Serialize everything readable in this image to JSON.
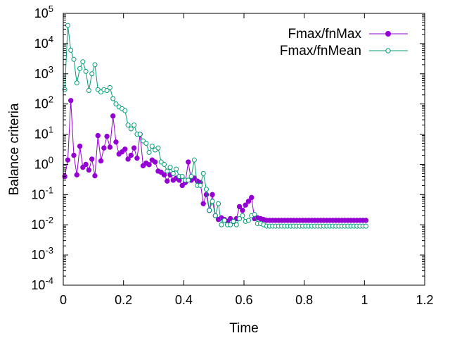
{
  "chart_data": {
    "type": "line",
    "xlabel": "Time",
    "ylabel": "Balance criteria",
    "x_scale": "linear",
    "y_scale": "log",
    "xlim": [
      0,
      1.2
    ],
    "ylim": [
      0.0001,
      100000
    ],
    "x_ticks": [
      "0",
      "0.2",
      "0.4",
      "0.6",
      "0.8",
      "1",
      "1.2"
    ],
    "x_tick_values": [
      0,
      0.2,
      0.4,
      0.6,
      0.8,
      1.0,
      1.2
    ],
    "y_ticks": [
      {
        "base": "10",
        "exp": "-4",
        "value": 0.0001
      },
      {
        "base": "10",
        "exp": "-3",
        "value": 0.001
      },
      {
        "base": "10",
        "exp": "-2",
        "value": 0.01
      },
      {
        "base": "10",
        "exp": "-1",
        "value": 0.1
      },
      {
        "base": "10",
        "exp": "0",
        "value": 1
      },
      {
        "base": "10",
        "exp": "1",
        "value": 10
      },
      {
        "base": "10",
        "exp": "2",
        "value": 100
      },
      {
        "base": "10",
        "exp": "3",
        "value": 1000
      },
      {
        "base": "10",
        "exp": "4",
        "value": 10000
      },
      {
        "base": "10",
        "exp": "5",
        "value": 100000
      }
    ],
    "grid": false,
    "legend_position": "top-right",
    "series": [
      {
        "name": "Fmax/fnMax",
        "color": "#9400d3",
        "marker": "filled-circle",
        "x": [
          0.005,
          0.015,
          0.025,
          0.035,
          0.045,
          0.055,
          0.065,
          0.075,
          0.085,
          0.095,
          0.105,
          0.115,
          0.125,
          0.135,
          0.145,
          0.155,
          0.165,
          0.175,
          0.185,
          0.195,
          0.205,
          0.215,
          0.225,
          0.235,
          0.245,
          0.255,
          0.265,
          0.275,
          0.285,
          0.295,
          0.305,
          0.315,
          0.325,
          0.335,
          0.345,
          0.355,
          0.365,
          0.375,
          0.385,
          0.395,
          0.405,
          0.415,
          0.425,
          0.435,
          0.445,
          0.455,
          0.465,
          0.475,
          0.485,
          0.495,
          0.505,
          0.515,
          0.525,
          0.535,
          0.545,
          0.555,
          0.565,
          0.575,
          0.585,
          0.595,
          0.605,
          0.615,
          0.625,
          0.635,
          0.645,
          0.655,
          0.665,
          0.675,
          0.685,
          0.695,
          0.705,
          0.715,
          0.725,
          0.735,
          0.745,
          0.755,
          0.765,
          0.775,
          0.785,
          0.795,
          0.805,
          0.815,
          0.825,
          0.835,
          0.845,
          0.855,
          0.865,
          0.875,
          0.885,
          0.895,
          0.905,
          0.915,
          0.925,
          0.935,
          0.945,
          0.955,
          0.965,
          0.975,
          0.985,
          0.995,
          1.005
        ],
        "y": [
          0.4,
          1.4,
          130,
          2,
          0.45,
          4,
          0.8,
          1,
          0.65,
          1.5,
          0.42,
          9,
          1.3,
          3.5,
          8.5,
          3.7,
          40,
          5.5,
          2.2,
          2.6,
          3.2,
          1.5,
          2,
          3.5,
          1.6,
          10,
          0.9,
          1.1,
          0.98,
          1.4,
          1.2,
          0.6,
          0.55,
          0.45,
          0.28,
          0.45,
          0.3,
          0.35,
          0.3,
          0.2,
          0.25,
          1.2,
          0.3,
          0.35,
          0.28,
          0.25,
          0.05,
          0.1,
          0.03,
          0.1,
          0.02,
          0.015,
          0.017,
          0.015,
          0.013,
          0.016,
          0.013,
          0.016,
          0.04,
          0.03,
          0.045,
          0.06,
          0.08,
          0.016,
          0.017,
          0.016,
          0.015,
          0.014,
          0.014,
          0.014,
          0.014,
          0.014,
          0.014,
          0.014,
          0.014,
          0.014,
          0.014,
          0.014,
          0.014,
          0.014,
          0.014,
          0.014,
          0.014,
          0.014,
          0.014,
          0.014,
          0.014,
          0.014,
          0.014,
          0.014,
          0.014,
          0.014,
          0.014,
          0.014,
          0.014,
          0.014,
          0.014,
          0.014,
          0.014,
          0.014,
          0.014
        ]
      },
      {
        "name": "Fmax/fnMean",
        "color": "#009e73",
        "marker": "open-circle",
        "x": [
          0.005,
          0.015,
          0.025,
          0.035,
          0.045,
          0.055,
          0.065,
          0.075,
          0.085,
          0.095,
          0.105,
          0.115,
          0.125,
          0.135,
          0.145,
          0.155,
          0.165,
          0.175,
          0.185,
          0.195,
          0.205,
          0.215,
          0.225,
          0.235,
          0.245,
          0.255,
          0.265,
          0.275,
          0.285,
          0.295,
          0.305,
          0.315,
          0.325,
          0.335,
          0.345,
          0.355,
          0.365,
          0.375,
          0.385,
          0.395,
          0.405,
          0.415,
          0.425,
          0.435,
          0.445,
          0.455,
          0.465,
          0.475,
          0.485,
          0.495,
          0.505,
          0.515,
          0.525,
          0.535,
          0.545,
          0.555,
          0.565,
          0.575,
          0.585,
          0.595,
          0.605,
          0.615,
          0.625,
          0.635,
          0.645,
          0.655,
          0.665,
          0.675,
          0.685,
          0.695,
          0.705,
          0.715,
          0.725,
          0.735,
          0.745,
          0.755,
          0.765,
          0.775,
          0.785,
          0.795,
          0.805,
          0.815,
          0.825,
          0.835,
          0.845,
          0.855,
          0.865,
          0.875,
          0.885,
          0.895,
          0.905,
          0.915,
          0.925,
          0.935,
          0.945,
          0.955,
          0.965,
          0.975,
          0.985,
          0.995,
          1.005
        ],
        "y": [
          300,
          40000,
          6000,
          3000,
          500,
          1500,
          2500,
          1200,
          280,
          1000,
          2000,
          300,
          250,
          300,
          280,
          350,
          150,
          100,
          80,
          70,
          60,
          20,
          15,
          20,
          10,
          10,
          6,
          5,
          2.5,
          4,
          3,
          3.5,
          1.2,
          1,
          0.6,
          0.8,
          0.5,
          0.7,
          0.4,
          0.4,
          0.3,
          0.3,
          0.4,
          1.4,
          0.2,
          0.2,
          0.5,
          0.15,
          0.03,
          0.06,
          0.02,
          0.05,
          0.01,
          0.014,
          0.01,
          0.01,
          0.013,
          0.01,
          0.016,
          0.02,
          0.013,
          0.014,
          0.02,
          0.022,
          0.011,
          0.011,
          0.01,
          0.009,
          0.009,
          0.009,
          0.009,
          0.009,
          0.009,
          0.009,
          0.009,
          0.009,
          0.009,
          0.009,
          0.009,
          0.009,
          0.009,
          0.009,
          0.009,
          0.009,
          0.009,
          0.009,
          0.009,
          0.009,
          0.009,
          0.009,
          0.009,
          0.009,
          0.009,
          0.009,
          0.009,
          0.009,
          0.009,
          0.009,
          0.009,
          0.009,
          0.009
        ]
      }
    ]
  }
}
